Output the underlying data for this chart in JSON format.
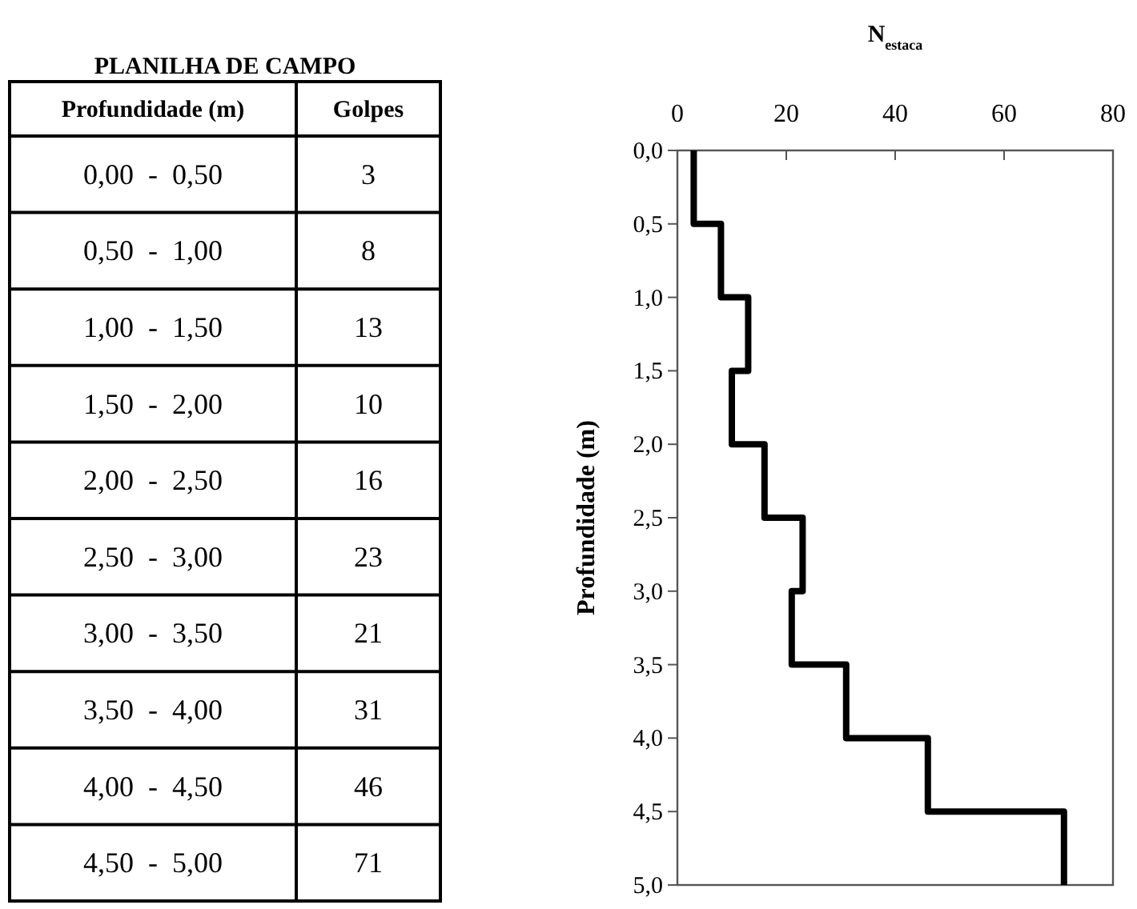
{
  "chart_data": [
    {
      "type": "other",
      "title": "PLANILHA DE CAMPO",
      "annotations": [
        "Profundidade (m)",
        "Golpes"
      ],
      "categories": [
        "0,00  -  0,50",
        "0,50  -  1,00",
        "1,00  -  1,50",
        "1,50  -  2,00",
        "2,00  -  2,50",
        "2,50  -  3,00",
        "3,00  -  3,50",
        "3,50  -  4,00",
        "4,00  -  4,50",
        "4,50  -  5,00"
      ],
      "values": [
        3,
        8,
        13,
        10,
        16,
        23,
        21,
        31,
        46,
        71
      ],
      "data_labels": true
    },
    {
      "type": "line",
      "xlabel": "N$_{estaca}$",
      "ylabel": "Profundidade (m)",
      "x": [
        3,
        3,
        8,
        8,
        13,
        13,
        10,
        10,
        16,
        16,
        23,
        23,
        21,
        21,
        31,
        31,
        46,
        46,
        71,
        71
      ],
      "values": [
        0,
        0.5,
        0.5,
        1,
        1,
        1.5,
        1.5,
        2,
        2,
        2.5,
        2.5,
        3,
        3,
        3.5,
        3.5,
        4,
        4,
        4.5,
        4.5,
        5
      ],
      "color": "#000000",
      "grid": false,
      "xlim": [
        0,
        80
      ],
      "xticks": [
        0,
        20,
        40,
        60,
        80
      ],
      "ylim": [
        5,
        0
      ],
      "yticks": [
        {
          "value": 0,
          "label": "0,0"
        },
        {
          "value": 0.5,
          "label": "0,5"
        },
        {
          "value": 1,
          "label": "1,0"
        },
        {
          "value": 1.5,
          "label": "1,5"
        },
        {
          "value": 2,
          "label": "2,0"
        },
        {
          "value": 2.5,
          "label": "2,5"
        },
        {
          "value": 3,
          "label": "3,0"
        },
        {
          "value": 3.5,
          "label": "3,5"
        },
        {
          "value": 4,
          "label": "4,0"
        },
        {
          "value": 4.5,
          "label": "4,5"
        },
        {
          "value": 5,
          "label": "5,0"
        }
      ]
    }
  ]
}
